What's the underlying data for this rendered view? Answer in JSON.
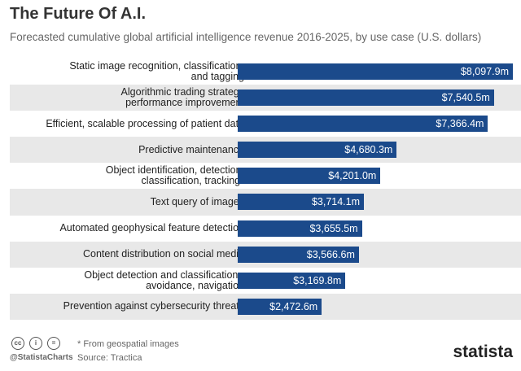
{
  "chart_data": {
    "type": "bar",
    "orientation": "horizontal",
    "title": "The Future Of A.I.",
    "subtitle": "Forecasted cumulative global artificial intelligence revenue 2016-2025, by use case (U.S. dollars)",
    "categories": [
      "Static image recognition, classification,\nand tagging",
      "Algorithmic trading strategy\nperformance improvement",
      "Efficient, scalable processing of patient data",
      "Predictive maintenance",
      "Object identification, detection,\nclassification, tracking*",
      "Text query of images",
      "Automated geophysical feature detection",
      "Content distribution on social media",
      "Object detection and classification -\navoidance, navigation",
      "Prevention against cybersecurity threats"
    ],
    "values": [
      8097.9,
      7540.5,
      7366.4,
      4680.3,
      4201.0,
      3714.1,
      3655.5,
      3566.6,
      3169.8,
      2472.6
    ],
    "value_labels": [
      "$8,097.9m",
      "$7,540.5m",
      "$7,366.4m",
      "$4,680.3m",
      "$4,201.0m",
      "$3,714.1m",
      "$3,655.5m",
      "$3,566.6m",
      "$3,169.8m",
      "$2,472.6m"
    ],
    "color": "#1b4a8b"
  },
  "footer": {
    "note": "* From geospatial images",
    "source": "Source: Tractica",
    "handle": "@StatistaCharts",
    "logo": "statista"
  }
}
